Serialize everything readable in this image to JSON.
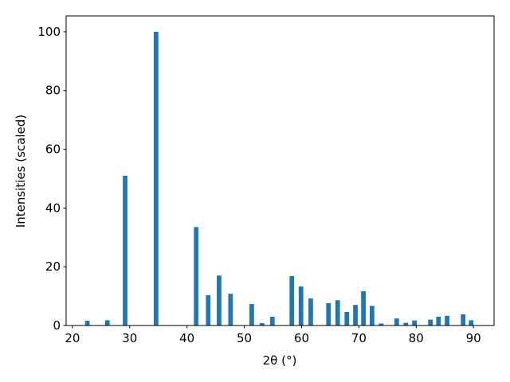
{
  "chart_data": {
    "type": "bar",
    "xlabel": "2θ (°)",
    "ylabel": "Intensities (scaled)",
    "x": [
      22.6,
      26.1,
      29.2,
      34.6,
      41.6,
      43.7,
      45.6,
      47.6,
      51.3,
      53.1,
      54.9,
      58.3,
      59.9,
      61.6,
      64.7,
      66.3,
      67.9,
      69.4,
      70.8,
      72.3,
      73.9,
      76.6,
      78.2,
      79.7,
      82.5,
      83.9,
      85.4,
      88.2,
      89.6
    ],
    "values": [
      1.6,
      1.8,
      51,
      100,
      33.5,
      10.3,
      17,
      10.8,
      7.3,
      0.8,
      3,
      16.8,
      13.3,
      9.2,
      7.6,
      8.6,
      4.6,
      7,
      11.7,
      6.7,
      0.7,
      2.4,
      0.9,
      1.7,
      2,
      3,
      3.3,
      3.8,
      1.8
    ],
    "color": "#1f77b4",
    "xlim": [
      18.9,
      93.6
    ],
    "xticks": [
      20,
      30,
      40,
      50,
      60,
      70,
      80,
      90
    ],
    "ylim": [
      0,
      105.4
    ],
    "yticks": [
      0,
      20,
      40,
      60,
      80,
      100
    ]
  }
}
